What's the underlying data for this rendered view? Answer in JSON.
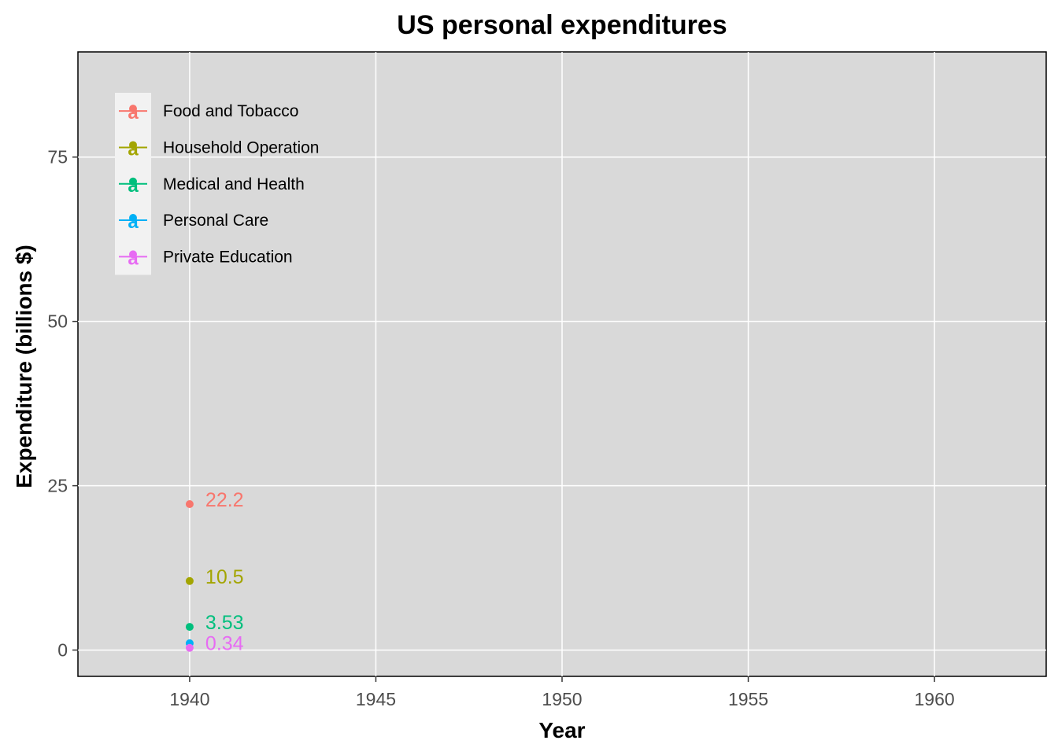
{
  "chart_data": {
    "type": "line",
    "title": "US personal expenditures",
    "xlabel": "Year",
    "ylabel": "Expenditure (billions $)",
    "xlim": [
      1937,
      1963
    ],
    "ylim": [
      -4,
      91
    ],
    "x_ticks": [
      1940,
      1945,
      1950,
      1955,
      1960
    ],
    "y_ticks": [
      0,
      25,
      50,
      75
    ],
    "grid": true,
    "legend_position": "top-left inside",
    "legend_key_glyph": "a",
    "series": [
      {
        "name": "Food and Tobacco",
        "color": "#F8766D",
        "x": [
          1940
        ],
        "y": [
          22.2
        ],
        "label": "22.2"
      },
      {
        "name": "Household Operation",
        "color": "#A3A500",
        "x": [
          1940
        ],
        "y": [
          10.5
        ],
        "label": "10.5"
      },
      {
        "name": "Medical and Health",
        "color": "#00BF7D",
        "x": [
          1940
        ],
        "y": [
          3.53
        ],
        "label": "3.53"
      },
      {
        "name": "Personal Care",
        "color": "#00B0F6",
        "x": [
          1940
        ],
        "y": [
          1.04
        ],
        "label": ""
      },
      {
        "name": "Private Education",
        "color": "#E76BF3",
        "x": [
          1940
        ],
        "y": [
          0.34
        ],
        "label": "0.34"
      }
    ]
  }
}
